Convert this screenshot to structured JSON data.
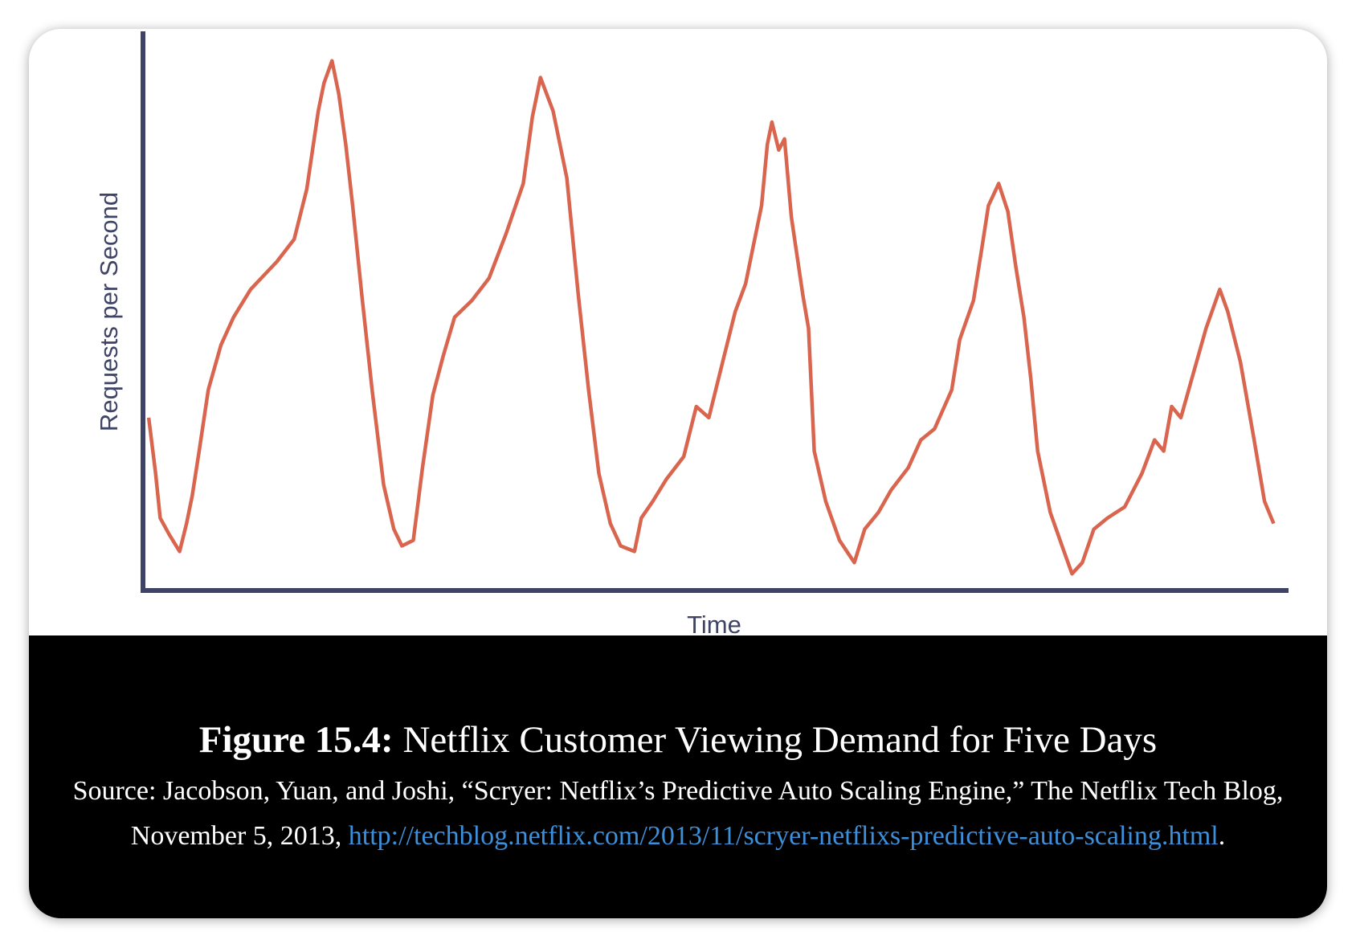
{
  "chart_data": {
    "type": "line",
    "x_label": "Time",
    "y_label": "Requests per Second",
    "color": "#d9654f",
    "xlim": [
      0,
      100
    ],
    "ylim": [
      0,
      100
    ],
    "x": [
      0.5,
      1.1,
      1.5,
      2.3,
      3.2,
      3.8,
      4.3,
      4.9,
      5.7,
      6.8,
      7.9,
      9.4,
      11.7,
      13.2,
      14.3,
      15.3,
      15.8,
      16.5,
      17.1,
      17.7,
      18.3,
      19.1,
      20.0,
      21.0,
      21.9,
      22.6,
      23.6,
      24.4,
      25.3,
      26.2,
      27.2,
      28.7,
      30.2,
      31.7,
      33.2,
      34.0,
      34.7,
      35.8,
      37.0,
      38.0,
      38.9,
      39.8,
      40.8,
      41.7,
      42.9,
      43.5,
      44.5,
      45.7,
      47.2,
      48.3,
      49.4,
      50.6,
      51.7,
      52.6,
      53.2,
      54.0,
      54.5,
      54.9,
      55.5,
      56.0,
      56.6,
      57.6,
      58.1,
      58.6,
      59.6,
      60.8,
      62.1,
      63.0,
      64.2,
      65.3,
      66.8,
      67.9,
      69.1,
      70.6,
      71.3,
      72.5,
      73.2,
      73.8,
      74.7,
      75.5,
      76.2,
      76.9,
      77.5,
      78.1,
      79.2,
      80.4,
      81.1,
      82.0,
      83.0,
      84.2,
      85.7,
      87.2,
      88.3,
      89.1,
      89.8,
      90.6,
      91.7,
      92.8,
      94.0,
      94.7,
      95.8,
      97.0,
      97.9,
      98.7
    ],
    "values": [
      31,
      21,
      13,
      10,
      7,
      12,
      17,
      25,
      36,
      44,
      49,
      54,
      59,
      63,
      72,
      86,
      91,
      95,
      89,
      80,
      69,
      53,
      36,
      19,
      11,
      8,
      9,
      22,
      35,
      42,
      49,
      52,
      56,
      64,
      73,
      85,
      92,
      86,
      74,
      53,
      36,
      21,
      12,
      8,
      7,
      13,
      16,
      20,
      24,
      33,
      31,
      41,
      50,
      55,
      61,
      69,
      80,
      84,
      79,
      81,
      67,
      53,
      47,
      25,
      16,
      9,
      5,
      11,
      14,
      18,
      22,
      27,
      29,
      36,
      45,
      52,
      61,
      69,
      73,
      68,
      58,
      49,
      38,
      25,
      14,
      7,
      3,
      5,
      11,
      13,
      15,
      21,
      27,
      25,
      33,
      31,
      39,
      47,
      54,
      50,
      41,
      27,
      16,
      12
    ]
  },
  "caption": {
    "label": "Figure 15.4:",
    "title": "Netflix Customer Viewing Demand for Five Days",
    "source": "Source: Jacobson, Yuan, and Joshi, “Scryer: Netflix’s Predictive Auto Scaling Engine,” The Netflix Tech Blog, November 5, 2013, ",
    "link": "http://techblog.netflix.com/2013/11/scryer-netflixs-predictive-auto-scaling.html",
    "end": "."
  }
}
